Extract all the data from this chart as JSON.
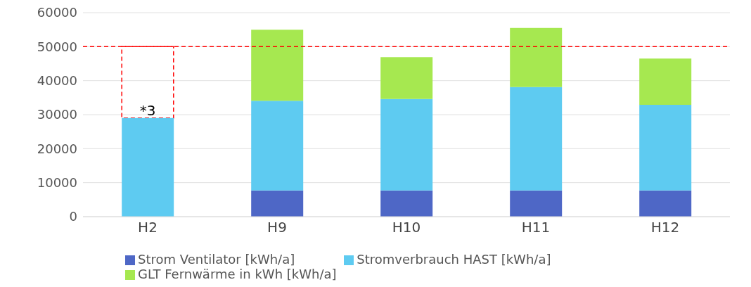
{
  "chart_data": {
    "type": "bar",
    "stacked": true,
    "categories": [
      "H2",
      "H9",
      "H10",
      "H11",
      "H12"
    ],
    "series": [
      {
        "name": "Strom Ventilator  [kWh/a]",
        "color": "#4e67c6",
        "values": [
          null,
          7700,
          7700,
          7700,
          7700
        ]
      },
      {
        "name": "Stromverbrauch HAST [kWh/a]",
        "color": "#5ecbf1",
        "values": [
          29000,
          26400,
          26900,
          30400,
          25200
        ]
      },
      {
        "name": "GLT Fernwärme in kWh [kWh/a]",
        "color": "#a6e850",
        "values": [
          null,
          20900,
          12300,
          17400,
          13600
        ]
      }
    ],
    "ylim": [
      0,
      60000
    ],
    "yticks": [
      0,
      10000,
      20000,
      30000,
      40000,
      50000,
      60000
    ],
    "grid": "y",
    "legend": "bottom",
    "ref_lines": [
      {
        "axis": "y",
        "value": 50000,
        "color": "#ff0000",
        "line_style": "dashed"
      }
    ],
    "annotations": [
      {
        "text": "*3",
        "x": "H2",
        "y": 29000
      }
    ]
  }
}
